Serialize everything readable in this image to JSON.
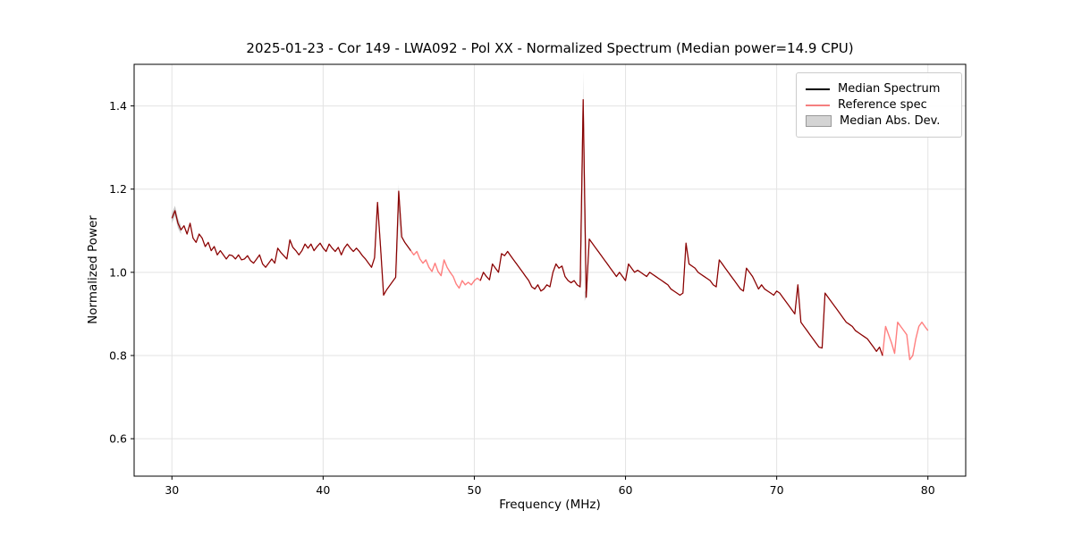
{
  "figure": {
    "title": "2025-01-23 - Cor 149 - LWA092 - Pol XX - Normalized Spectrum (Median power=14.9 CPU)",
    "xlabel": "Frequency (MHz)",
    "ylabel": "Normalized Power"
  },
  "legend": {
    "entries": [
      {
        "label": "Median Spectrum",
        "type": "line",
        "display_color": "#000000"
      },
      {
        "label": "Reference spec",
        "type": "line",
        "display_color": "#f57f7f"
      },
      {
        "label": "Median Abs. Dev.",
        "type": "patch",
        "display_color": "#d4d4d4",
        "edge_color": "#999999"
      }
    ]
  },
  "chart_data": {
    "type": "line",
    "title": "2025-01-23 - Cor 149 - LWA092 - Pol XX - Normalized Spectrum (Median power=14.9 CPU)",
    "xlabel": "Frequency (MHz)",
    "ylabel": "Normalized Power",
    "xlim": [
      27.5,
      82.5
    ],
    "ylim": [
      0.51,
      1.5
    ],
    "xticks": [
      30,
      40,
      50,
      60,
      70,
      80
    ],
    "yticks": [
      0.6,
      0.8,
      1.0,
      1.2,
      1.4
    ],
    "grid": true,
    "legend_position": "upper right",
    "x_start": 30.0,
    "x_step": 0.2,
    "power": [
      1.13,
      1.148,
      1.118,
      1.102,
      1.112,
      1.092,
      1.118,
      1.082,
      1.072,
      1.092,
      1.082,
      1.062,
      1.072,
      1.052,
      1.062,
      1.042,
      1.052,
      1.042,
      1.032,
      1.042,
      1.04,
      1.032,
      1.042,
      1.03,
      1.032,
      1.04,
      1.028,
      1.022,
      1.032,
      1.042,
      1.02,
      1.012,
      1.022,
      1.032,
      1.022,
      1.058,
      1.048,
      1.04,
      1.032,
      1.078,
      1.06,
      1.052,
      1.042,
      1.052,
      1.068,
      1.058,
      1.068,
      1.052,
      1.062,
      1.07,
      1.058,
      1.05,
      1.068,
      1.058,
      1.05,
      1.06,
      1.042,
      1.058,
      1.068,
      1.058,
      1.05,
      1.058,
      1.05,
      1.04,
      1.032,
      1.022,
      1.012,
      1.035,
      1.168,
      1.06,
      0.945,
      0.958,
      0.968,
      0.978,
      0.988,
      1.195,
      1.085,
      1.072,
      1.062,
      1.052,
      1.042,
      1.05,
      1.032,
      1.022,
      1.03,
      1.012,
      1.002,
      1.022,
      1.002,
      0.992,
      1.03,
      1.012,
      1.0,
      0.99,
      0.972,
      0.962,
      0.98,
      0.97,
      0.976,
      0.97,
      0.98,
      0.986,
      0.98,
      1.0,
      0.99,
      0.982,
      1.02,
      1.01,
      1.0,
      1.045,
      1.04,
      1.05,
      1.04,
      1.03,
      1.02,
      1.01,
      1.0,
      0.99,
      0.98,
      0.965,
      0.96,
      0.97,
      0.955,
      0.96,
      0.97,
      0.965,
      1.0,
      1.02,
      1.01,
      1.015,
      0.99,
      0.98,
      0.975,
      0.98,
      0.97,
      0.965,
      1.415,
      0.94,
      1.08,
      1.07,
      1.06,
      1.05,
      1.04,
      1.03,
      1.02,
      1.01,
      1.0,
      0.99,
      1.0,
      0.99,
      0.98,
      1.02,
      1.01,
      1.0,
      1.005,
      1.0,
      0.995,
      0.99,
      1.0,
      0.995,
      0.99,
      0.985,
      0.98,
      0.975,
      0.97,
      0.96,
      0.955,
      0.95,
      0.945,
      0.95,
      1.07,
      1.02,
      1.015,
      1.01,
      1.0,
      0.995,
      0.99,
      0.985,
      0.98,
      0.97,
      0.965,
      1.03,
      1.02,
      1.01,
      1.0,
      0.99,
      0.98,
      0.97,
      0.96,
      0.955,
      1.01,
      1.0,
      0.99,
      0.975,
      0.96,
      0.97,
      0.96,
      0.955,
      0.95,
      0.945,
      0.955,
      0.95,
      0.94,
      0.93,
      0.92,
      0.91,
      0.9,
      0.97,
      0.88,
      0.87,
      0.86,
      0.85,
      0.84,
      0.83,
      0.82,
      0.818,
      0.95,
      0.94,
      0.93,
      0.92,
      0.91,
      0.9,
      0.89,
      0.88,
      0.875,
      0.87,
      0.86,
      0.855,
      0.85,
      0.845,
      0.84,
      0.83,
      0.82,
      0.81,
      0.82,
      0.8,
      0.87,
      0.85,
      0.83,
      0.805,
      0.88,
      0.87,
      0.86,
      0.85,
      0.79,
      0.8,
      0.84,
      0.87,
      0.88,
      0.87,
      0.86
    ],
    "series": [
      {
        "name": "Median Spectrum",
        "data_name": "median-spectrum-line",
        "color": "#000000",
        "opacity": 1.0,
        "width": 1.1,
        "gaps": [
          [
            45.9,
            50.3
          ],
          [
            77.1,
            80.1
          ]
        ]
      },
      {
        "name": "Reference spec",
        "data_name": "reference-spec-line",
        "color": "#ff0000",
        "opacity": 0.5,
        "width": 1.4,
        "gaps": []
      }
    ],
    "mad_band": {
      "name": "Median Abs. Dev.",
      "color": "#bbbbbb",
      "segments": [
        [
          [
            30.0,
            1.118,
            1.142
          ],
          [
            30.2,
            1.136,
            1.16
          ],
          [
            30.4,
            1.106,
            1.13
          ],
          [
            30.6,
            1.092,
            1.112
          ]
        ],
        [
          [
            44.9,
            0.982,
            0.996
          ],
          [
            45.0,
            1.15,
            1.212
          ],
          [
            45.1,
            1.062,
            1.095
          ]
        ],
        [
          [
            57.0,
            0.958,
            0.972
          ],
          [
            57.1,
            0.982,
            1.012
          ],
          [
            57.2,
            1.335,
            1.483
          ],
          [
            57.3,
            0.93,
            0.952
          ],
          [
            57.4,
            0.946,
            0.962
          ]
        ]
      ]
    }
  }
}
